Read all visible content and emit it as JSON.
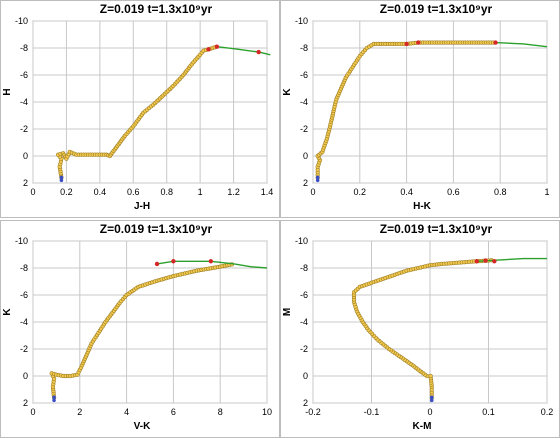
{
  "colors": {
    "track": "#a0852b",
    "model": "#f2c94c",
    "marker_outline": "#8a6d1d",
    "green": "#2ca02c",
    "red": "#d62728",
    "blue": "#3b4fc4",
    "grid": "#c8c8c8"
  },
  "chart_data": [
    {
      "type": "scatter",
      "title": "Z=0.019  t=1.3x10⁹yr",
      "xlabel": "J-H",
      "ylabel": "H",
      "xlim": [
        0,
        1.4
      ],
      "ylim": [
        2,
        -10
      ],
      "xticks": [
        "0",
        "0.2",
        "0.4",
        "0.6",
        "0.8",
        "1",
        "1.2",
        "1.4"
      ],
      "yticks": [
        "-10",
        "-8",
        "-6",
        "-4",
        "-2",
        "0",
        "2"
      ],
      "grid": true,
      "x_tick_values": [
        0,
        0.2,
        0.4,
        0.6,
        0.8,
        1.0,
        1.2,
        1.4
      ],
      "y_tick_values": [
        -10,
        -8,
        -6,
        -4,
        -2,
        0,
        2
      ],
      "series": [
        {
          "role": "isochrone",
          "x": [
            0.17,
            0.16,
            0.17,
            0.15,
            0.18,
            0.2,
            0.22,
            0.26,
            0.33,
            0.4,
            0.44,
            0.46,
            0.49,
            0.52,
            0.55,
            0.6,
            0.66,
            0.72,
            0.78,
            0.84,
            0.9,
            0.95,
            1.0,
            1.02,
            1.05,
            1.1
          ],
          "y": [
            1.6,
            0.8,
            0.2,
            -0.1,
            -0.2,
            0.2,
            -0.3,
            -0.1,
            -0.1,
            -0.1,
            -0.1,
            0.0,
            -0.5,
            -1.0,
            -1.5,
            -2.2,
            -3.2,
            -3.8,
            -4.5,
            -5.2,
            -6.0,
            -6.8,
            -7.5,
            -7.8,
            -7.9,
            -8.1
          ]
        },
        {
          "role": "agb-green",
          "x": [
            1.1,
            1.2,
            1.35,
            1.42
          ],
          "y": [
            -8.1,
            -7.95,
            -7.7,
            -7.5
          ]
        },
        {
          "role": "red-points",
          "x": [
            1.05,
            1.1,
            1.35
          ],
          "y": [
            -7.9,
            -8.1,
            -7.7
          ]
        },
        {
          "role": "blue-points",
          "x": [
            0.17
          ],
          "y": [
            1.8
          ]
        }
      ]
    },
    {
      "type": "scatter",
      "title": "Z=0.019  t=1.3x10⁹yr",
      "xlabel": "H-K",
      "ylabel": "K",
      "xlim": [
        0,
        1
      ],
      "ylim": [
        2,
        -10
      ],
      "xticks": [
        "0",
        "0.2",
        "0.4",
        "0.6",
        "0.8",
        "1"
      ],
      "yticks": [
        "-10",
        "-8",
        "-6",
        "-4",
        "-2",
        "0",
        "2"
      ],
      "grid": true,
      "x_tick_values": [
        0,
        0.2,
        0.4,
        0.6,
        0.8,
        1.0
      ],
      "y_tick_values": [
        -10,
        -8,
        -6,
        -4,
        -2,
        0,
        2
      ],
      "series": [
        {
          "role": "isochrone",
          "x": [
            0.02,
            0.02,
            0.03,
            0.02,
            0.04,
            0.05,
            0.06,
            0.07,
            0.08,
            0.09,
            0.1,
            0.12,
            0.14,
            0.17,
            0.2,
            0.23,
            0.26,
            0.4,
            0.45,
            0.6,
            0.78
          ],
          "y": [
            1.6,
            0.8,
            0.3,
            0.0,
            -0.3,
            -0.8,
            -1.3,
            -2.0,
            -2.7,
            -3.5,
            -4.2,
            -5.0,
            -5.8,
            -6.6,
            -7.4,
            -8.0,
            -8.3,
            -8.3,
            -8.4,
            -8.4,
            -8.4
          ]
        },
        {
          "role": "agb-green",
          "x": [
            0.78,
            0.9,
            1.0
          ],
          "y": [
            -8.4,
            -8.3,
            -8.1
          ]
        },
        {
          "role": "red-points",
          "x": [
            0.4,
            0.45,
            0.78
          ],
          "y": [
            -8.3,
            -8.4,
            -8.4
          ]
        },
        {
          "role": "blue-points",
          "x": [
            0.02
          ],
          "y": [
            1.8
          ]
        }
      ]
    },
    {
      "type": "scatter",
      "title": "Z=0.019  t=1.3x10⁹yr",
      "xlabel": "V-K",
      "ylabel": "K",
      "xlim": [
        0,
        10
      ],
      "ylim": [
        2,
        -10
      ],
      "xticks": [
        "0",
        "2",
        "4",
        "6",
        "8",
        "10"
      ],
      "yticks": [
        "-10",
        "-8",
        "-6",
        "-4",
        "-2",
        "0",
        "2"
      ],
      "grid": true,
      "x_tick_values": [
        0,
        2,
        4,
        6,
        8,
        10
      ],
      "y_tick_values": [
        -10,
        -8,
        -6,
        -4,
        -2,
        0,
        2
      ],
      "series": [
        {
          "role": "isochrone",
          "x": [
            0.9,
            0.85,
            0.9,
            0.8,
            1.0,
            1.3,
            1.6,
            1.9,
            2.1,
            2.3,
            2.5,
            2.8,
            3.1,
            3.4,
            3.7,
            4.0,
            4.5,
            5.2,
            6.0,
            7.0,
            8.0,
            8.6
          ],
          "y": [
            1.6,
            0.8,
            0.2,
            -0.2,
            -0.1,
            0.0,
            0.0,
            -0.1,
            -0.8,
            -1.6,
            -2.4,
            -3.2,
            -4.0,
            -4.7,
            -5.4,
            -6.0,
            -6.6,
            -7.0,
            -7.4,
            -7.8,
            -8.1,
            -8.3
          ]
        },
        {
          "role": "agb-green",
          "x": [
            8.6,
            9.3,
            10.0
          ],
          "y": [
            -8.3,
            -8.1,
            -8.0
          ]
        },
        {
          "role": "agb-green",
          "x": [
            5.3,
            6.0,
            7.6,
            8.6
          ],
          "y": [
            -8.3,
            -8.5,
            -8.5,
            -8.3
          ]
        },
        {
          "role": "red-points",
          "x": [
            5.3,
            6.0,
            7.6
          ],
          "y": [
            -8.3,
            -8.5,
            -8.5
          ]
        },
        {
          "role": "blue-points",
          "x": [
            0.9
          ],
          "y": [
            1.8
          ]
        }
      ]
    },
    {
      "type": "scatter",
      "title": "Z=0.019  t=1.3x10⁹yr",
      "xlabel": "K-M",
      "ylabel": "M",
      "xlim": [
        -0.2,
        0.2
      ],
      "ylim": [
        2,
        -10
      ],
      "xticks": [
        "-0.2",
        "-0.1",
        "0",
        "0.1",
        "0.2"
      ],
      "yticks": [
        "-10",
        "-8",
        "-6",
        "-4",
        "-2",
        "0",
        "2"
      ],
      "grid": true,
      "x_tick_values": [
        -0.2,
        -0.1,
        0,
        0.1,
        0.2
      ],
      "y_tick_values": [
        -10,
        -8,
        -6,
        -4,
        -2,
        0,
        2
      ],
      "series": [
        {
          "role": "isochrone",
          "x": [
            0.003,
            0.003,
            0.001,
            -0.005,
            -0.015,
            -0.03,
            -0.05,
            -0.07,
            -0.09,
            -0.105,
            -0.115,
            -0.125,
            -0.13,
            -0.13,
            -0.12,
            -0.1,
            -0.08,
            -0.06,
            -0.04,
            -0.02,
            0.0,
            0.02,
            0.05,
            0.08,
            0.1,
            0.11
          ],
          "y": [
            1.6,
            0.8,
            0.0,
            0.0,
            -0.3,
            -0.8,
            -1.4,
            -2.0,
            -2.7,
            -3.4,
            -4.0,
            -4.8,
            -5.5,
            -6.2,
            -6.6,
            -6.9,
            -7.2,
            -7.5,
            -7.8,
            -8.0,
            -8.2,
            -8.3,
            -8.4,
            -8.5,
            -8.55,
            -8.6
          ]
        },
        {
          "role": "agb-green",
          "x": [
            0.08,
            0.12,
            0.16,
            0.2
          ],
          "y": [
            -8.5,
            -8.6,
            -8.7,
            -8.7
          ]
        },
        {
          "role": "red-points",
          "x": [
            0.08,
            0.095,
            0.11
          ],
          "y": [
            -8.5,
            -8.55,
            -8.5
          ]
        },
        {
          "role": "blue-points",
          "x": [
            0.003
          ],
          "y": [
            1.8
          ]
        }
      ]
    }
  ]
}
